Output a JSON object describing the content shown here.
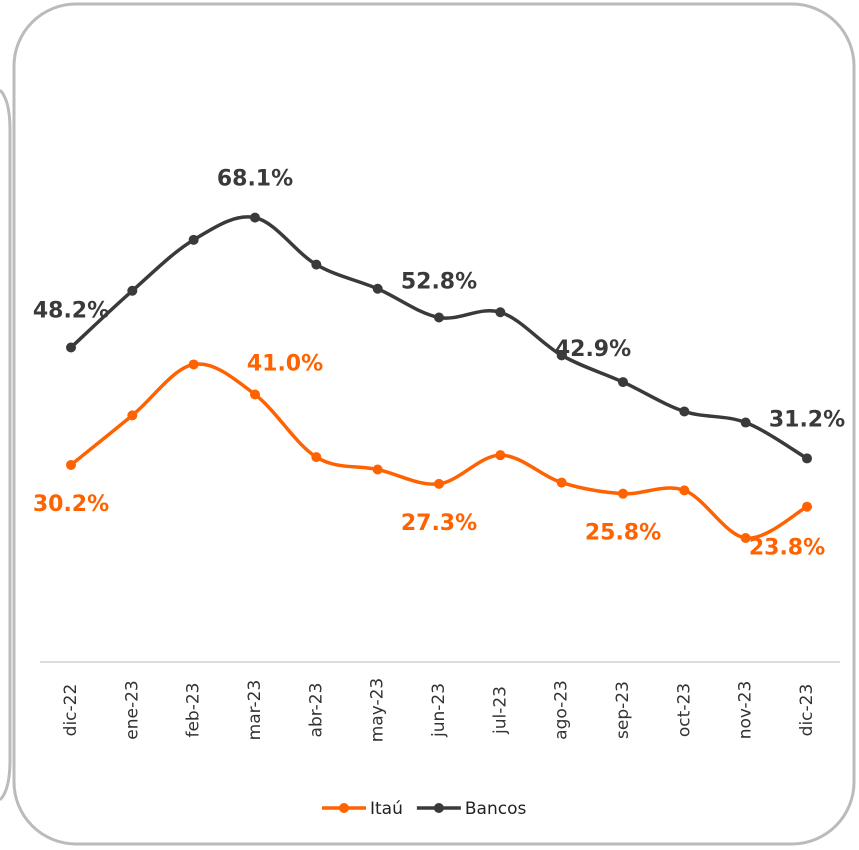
{
  "chart_data": {
    "type": "line",
    "categories": [
      "dic-22",
      "ene-23",
      "feb-23",
      "mar-23",
      "abr-23",
      "may-23",
      "jun-23",
      "jul-23",
      "ago-23",
      "sep-23",
      "oct-23",
      "nov-23",
      "dic-23"
    ],
    "series": [
      {
        "name": "Itaú",
        "color": "#ff6200",
        "values": [
          30.2,
          37.8,
          45.6,
          41.0,
          31.4,
          29.5,
          27.3,
          31.7,
          27.5,
          25.8,
          26.3,
          19.0,
          23.8
        ],
        "value_labels": [
          "30.2%",
          null,
          null,
          "41.0%",
          null,
          null,
          "27.3%",
          null,
          null,
          "25.8%",
          null,
          null,
          "23.8%"
        ]
      },
      {
        "name": "Bancos",
        "color": "#3a3a3a",
        "values": [
          48.2,
          56.9,
          64.7,
          68.1,
          60.9,
          57.2,
          52.8,
          53.6,
          47.0,
          42.9,
          38.4,
          36.7,
          31.2
        ],
        "value_labels": [
          "48.2%",
          null,
          null,
          "68.1%",
          null,
          null,
          "52.8%",
          null,
          null,
          "42.9%",
          null,
          null,
          "31.2%"
        ]
      }
    ],
    "ylim": [
      0,
      80
    ],
    "legend": "bottom"
  }
}
